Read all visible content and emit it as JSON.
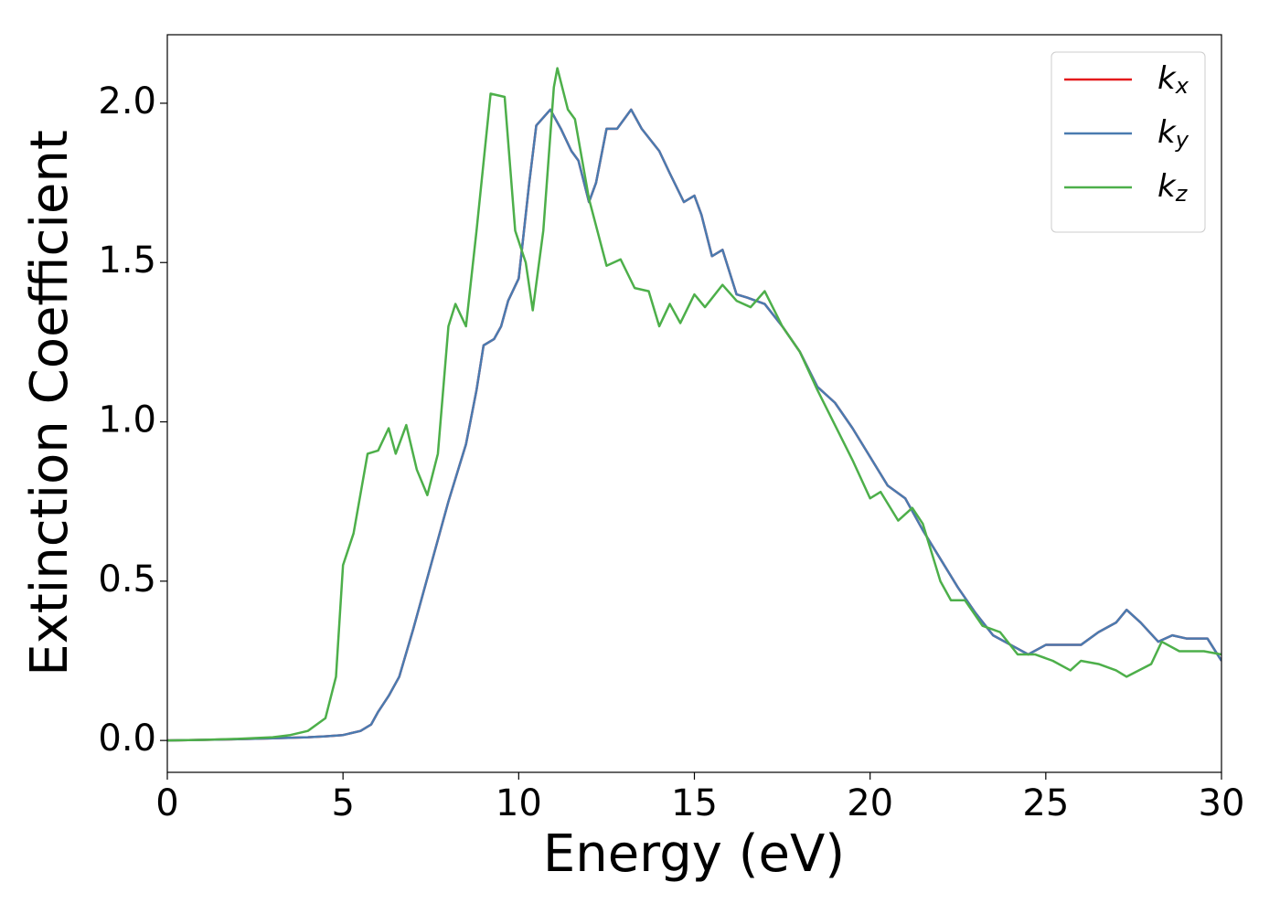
{
  "chart_data": {
    "type": "line",
    "xlabel": "Energy (eV)",
    "ylabel": "Extinction Coefficient",
    "xlim": [
      0,
      30
    ],
    "ylim": [
      -0.1,
      2.215
    ],
    "xticks": [
      0,
      5,
      10,
      15,
      20,
      25,
      30
    ],
    "yticks": [
      {
        "value": 0,
        "label": "0.0"
      },
      0.5,
      {
        "value": 1,
        "label": "1.0"
      },
      1.5,
      {
        "value": 2,
        "label": "2.0"
      }
    ],
    "legend": "upper right",
    "series": [
      {
        "name": "kx",
        "color": "#e41a1c",
        "x": [
          0,
          1,
          2,
          3,
          4,
          4.5,
          5,
          5.5,
          5.8,
          6,
          6.3,
          6.6,
          7,
          7.5,
          8,
          8.5,
          8.8,
          9,
          9.3,
          9.5,
          9.7,
          10,
          10.3,
          10.5,
          10.9,
          11.2,
          11.5,
          11.7,
          12,
          12.2,
          12.5,
          12.8,
          13.2,
          13.5,
          14,
          14.3,
          14.7,
          15,
          15.2,
          15.5,
          15.8,
          16.2,
          16.5,
          17,
          17.5,
          18,
          18.5,
          19,
          19.5,
          20,
          20.5,
          21,
          21.5,
          22,
          22.5,
          23,
          23.5,
          24,
          24.5,
          25,
          25.5,
          26,
          26.5,
          27,
          27.3,
          27.7,
          28.2,
          28.6,
          29,
          29.6,
          30
        ],
        "values": [
          0,
          0.002,
          0.004,
          0.007,
          0.01,
          0.013,
          0.017,
          0.03,
          0.05,
          0.09,
          0.14,
          0.2,
          0.35,
          0.55,
          0.75,
          0.93,
          1.1,
          1.24,
          1.26,
          1.3,
          1.38,
          1.45,
          1.75,
          1.93,
          1.98,
          1.92,
          1.85,
          1.82,
          1.69,
          1.75,
          1.92,
          1.92,
          1.98,
          1.92,
          1.85,
          1.78,
          1.69,
          1.71,
          1.65,
          1.52,
          1.54,
          1.4,
          1.39,
          1.37,
          1.3,
          1.22,
          1.11,
          1.06,
          0.98,
          0.89,
          0.8,
          0.76,
          0.66,
          0.57,
          0.48,
          0.4,
          0.33,
          0.3,
          0.27,
          0.3,
          0.3,
          0.3,
          0.34,
          0.37,
          0.41,
          0.37,
          0.31,
          0.33,
          0.32,
          0.32,
          0.25
        ]
      },
      {
        "name": "ky",
        "color": "#4a7bb0",
        "x": [
          0,
          1,
          2,
          3,
          4,
          4.5,
          5,
          5.5,
          5.8,
          6,
          6.3,
          6.6,
          7,
          7.5,
          8,
          8.5,
          8.8,
          9,
          9.3,
          9.5,
          9.7,
          10,
          10.3,
          10.5,
          10.9,
          11.2,
          11.5,
          11.7,
          12,
          12.2,
          12.5,
          12.8,
          13.2,
          13.5,
          14,
          14.3,
          14.7,
          15,
          15.2,
          15.5,
          15.8,
          16.2,
          16.5,
          17,
          17.5,
          18,
          18.5,
          19,
          19.5,
          20,
          20.5,
          21,
          21.5,
          22,
          22.5,
          23,
          23.5,
          24,
          24.5,
          25,
          25.5,
          26,
          26.5,
          27,
          27.3,
          27.7,
          28.2,
          28.6,
          29,
          29.6,
          30
        ],
        "values": [
          0,
          0.002,
          0.004,
          0.007,
          0.01,
          0.013,
          0.017,
          0.03,
          0.05,
          0.09,
          0.14,
          0.2,
          0.35,
          0.55,
          0.75,
          0.93,
          1.1,
          1.24,
          1.26,
          1.3,
          1.38,
          1.45,
          1.75,
          1.93,
          1.98,
          1.92,
          1.85,
          1.82,
          1.69,
          1.75,
          1.92,
          1.92,
          1.98,
          1.92,
          1.85,
          1.78,
          1.69,
          1.71,
          1.65,
          1.52,
          1.54,
          1.4,
          1.39,
          1.37,
          1.3,
          1.22,
          1.11,
          1.06,
          0.98,
          0.89,
          0.8,
          0.76,
          0.66,
          0.57,
          0.48,
          0.4,
          0.33,
          0.3,
          0.27,
          0.3,
          0.3,
          0.3,
          0.34,
          0.37,
          0.41,
          0.37,
          0.31,
          0.33,
          0.32,
          0.32,
          0.25
        ]
      },
      {
        "name": "kz",
        "color": "#4daf4a",
        "x": [
          0,
          1,
          2,
          3,
          3.5,
          4,
          4.5,
          4.8,
          5,
          5.3,
          5.7,
          6,
          6.3,
          6.5,
          6.8,
          7.1,
          7.4,
          7.7,
          8,
          8.2,
          8.5,
          8.8,
          9.2,
          9.6,
          9.9,
          10.2,
          10.4,
          10.7,
          11,
          11.1,
          11.4,
          11.6,
          12,
          12.5,
          12.9,
          13.3,
          13.7,
          14,
          14.3,
          14.6,
          15,
          15.3,
          15.8,
          16.2,
          16.6,
          17,
          17.5,
          18,
          18.5,
          19,
          19.5,
          20,
          20.3,
          20.8,
          21.2,
          21.5,
          22,
          22.3,
          22.7,
          23.2,
          23.7,
          24.2,
          24.7,
          25.2,
          25.7,
          26,
          26.5,
          27,
          27.3,
          28,
          28.3,
          28.8,
          29.5,
          30
        ],
        "values": [
          0,
          0.002,
          0.005,
          0.01,
          0.017,
          0.03,
          0.07,
          0.2,
          0.55,
          0.65,
          0.9,
          0.91,
          0.98,
          0.9,
          0.99,
          0.85,
          0.77,
          0.9,
          1.3,
          1.37,
          1.3,
          1.6,
          2.03,
          2.02,
          1.6,
          1.5,
          1.35,
          1.6,
          2.05,
          2.11,
          1.98,
          1.95,
          1.7,
          1.49,
          1.51,
          1.42,
          1.41,
          1.3,
          1.37,
          1.31,
          1.4,
          1.36,
          1.43,
          1.38,
          1.36,
          1.41,
          1.3,
          1.22,
          1.1,
          0.99,
          0.88,
          0.76,
          0.78,
          0.69,
          0.73,
          0.68,
          0.5,
          0.44,
          0.44,
          0.36,
          0.34,
          0.27,
          0.27,
          0.25,
          0.22,
          0.25,
          0.24,
          0.22,
          0.2,
          0.24,
          0.31,
          0.28,
          0.28,
          0.27
        ]
      }
    ]
  }
}
